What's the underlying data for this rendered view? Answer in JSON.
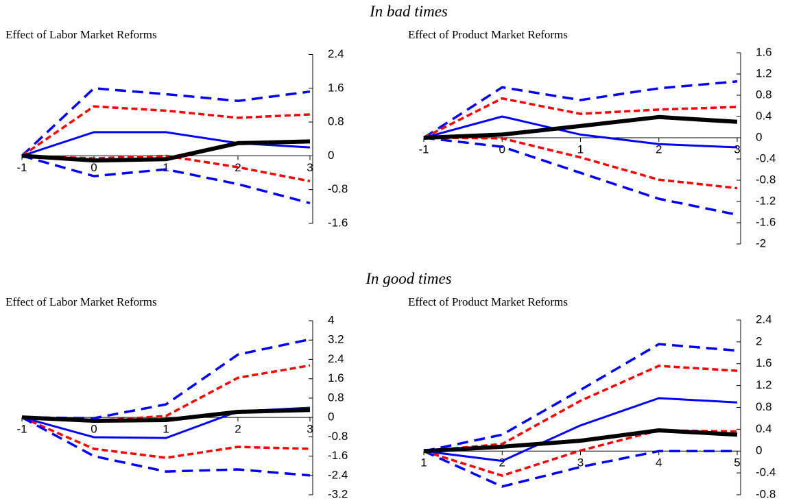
{
  "headings": [
    "In bad times",
    "In good times"
  ],
  "chart_data": [
    {
      "type": "line",
      "title": "Effect of Labor Market Reforms",
      "x": [
        -1,
        0,
        1,
        2,
        3
      ],
      "xlim": [
        -1,
        3
      ],
      "ylim": [
        -1.6,
        2.4
      ],
      "yticks": [
        2.4,
        1.6,
        0.8,
        0,
        -0.8,
        -1.6
      ],
      "series": [
        {
          "color": "#0000ff",
          "dash": "long",
          "line_width": 3.5,
          "values": [
            0,
            1.6,
            1.46,
            1.3,
            1.52
          ]
        },
        {
          "color": "#ff0000",
          "dash": "short",
          "line_width": 3.5,
          "values": [
            0,
            1.17,
            1.07,
            0.9,
            0.98
          ]
        },
        {
          "color": "#0000ff",
          "dash": "solid",
          "line_width": 3,
          "values": [
            0,
            0.56,
            0.56,
            0.3,
            0.2
          ]
        },
        {
          "color": "#ff0000",
          "dash": "short",
          "line_width": 3.5,
          "values": [
            0,
            -0.06,
            0,
            -0.27,
            -0.6
          ]
        },
        {
          "color": "#0000ff",
          "dash": "long",
          "line_width": 3.5,
          "values": [
            0,
            -0.48,
            -0.32,
            -0.67,
            -1.12
          ]
        },
        {
          "color": "#000000",
          "dash": "solid",
          "line_width": 6,
          "values": [
            0,
            -0.11,
            -0.08,
            0.3,
            0.34
          ]
        }
      ]
    },
    {
      "type": "line",
      "title": "Effect of Product Market Reforms",
      "x": [
        -1,
        0,
        1,
        2,
        3
      ],
      "xlim": [
        -1,
        3
      ],
      "ylim": [
        -2,
        1.6
      ],
      "yticks": [
        1.6,
        1.2,
        0.8,
        0.4,
        0,
        -0.4,
        -0.8,
        -1.2,
        -1.6,
        -2
      ],
      "series": [
        {
          "color": "#0000ff",
          "dash": "long",
          "line_width": 3.5,
          "values": [
            0,
            0.95,
            0.71,
            0.93,
            1.06
          ]
        },
        {
          "color": "#ff0000",
          "dash": "short",
          "line_width": 3.5,
          "values": [
            0,
            0.74,
            0.45,
            0.53,
            0.58
          ]
        },
        {
          "color": "#0000ff",
          "dash": "solid",
          "line_width": 3,
          "values": [
            0,
            0.4,
            0.06,
            -0.12,
            -0.18
          ]
        },
        {
          "color": "#ff0000",
          "dash": "short",
          "line_width": 3.5,
          "values": [
            0,
            -0.01,
            -0.37,
            -0.79,
            -0.95
          ]
        },
        {
          "color": "#0000ff",
          "dash": "long",
          "line_width": 3.5,
          "values": [
            0,
            -0.17,
            -0.66,
            -1.15,
            -1.45
          ]
        },
        {
          "color": "#000000",
          "dash": "solid",
          "line_width": 6,
          "values": [
            0,
            0.06,
            0.22,
            0.39,
            0.3
          ]
        }
      ]
    },
    {
      "type": "line",
      "title": "Effect of Labor Market Reforms",
      "x": [
        -1,
        0,
        1,
        2,
        3
      ],
      "xlim": [
        -1,
        3
      ],
      "ylim": [
        -3.2,
        4
      ],
      "yticks": [
        4,
        3.2,
        2.4,
        1.6,
        0.8,
        0,
        -0.8,
        -1.6,
        -2.4,
        -3.2
      ],
      "series": [
        {
          "color": "#0000ff",
          "dash": "long",
          "line_width": 3.5,
          "values": [
            0,
            -0.03,
            0.54,
            2.6,
            3.23
          ]
        },
        {
          "color": "#ff0000",
          "dash": "short",
          "line_width": 3.5,
          "values": [
            0,
            -0.14,
            0.06,
            1.64,
            2.15
          ]
        },
        {
          "color": "#0000ff",
          "dash": "solid",
          "line_width": 3,
          "values": [
            0,
            -0.82,
            -0.85,
            0.25,
            0.4
          ]
        },
        {
          "color": "#ff0000",
          "dash": "short",
          "line_width": 3.5,
          "values": [
            0,
            -1.3,
            -1.67,
            -1.22,
            -1.3
          ]
        },
        {
          "color": "#0000ff",
          "dash": "long",
          "line_width": 3.5,
          "values": [
            0,
            -1.6,
            -2.24,
            -2.15,
            -2.4
          ]
        },
        {
          "color": "#000000",
          "dash": "solid",
          "line_width": 6,
          "values": [
            0,
            -0.14,
            -0.11,
            0.23,
            0.31
          ]
        }
      ]
    },
    {
      "type": "line",
      "title": "Effect of Product Market Reforms",
      "x": [
        1,
        2,
        3,
        4,
        5
      ],
      "xlim": [
        1,
        5
      ],
      "ylim": [
        -0.8,
        2.4
      ],
      "yticks": [
        2.4,
        2,
        1.6,
        1.2,
        0.8,
        0.4,
        0,
        -0.4,
        -0.8
      ],
      "series": [
        {
          "color": "#0000ff",
          "dash": "long",
          "line_width": 3.5,
          "values": [
            0,
            0.3,
            1.12,
            1.96,
            1.84
          ]
        },
        {
          "color": "#ff0000",
          "dash": "short",
          "line_width": 3.5,
          "values": [
            0,
            0.13,
            0.92,
            1.56,
            1.47
          ]
        },
        {
          "color": "#0000ff",
          "dash": "solid",
          "line_width": 3,
          "values": [
            0,
            -0.18,
            0.47,
            0.97,
            0.89
          ]
        },
        {
          "color": "#ff0000",
          "dash": "short",
          "line_width": 3.5,
          "values": [
            0,
            -0.45,
            0.01,
            0.38,
            0.36
          ]
        },
        {
          "color": "#0000ff",
          "dash": "long",
          "line_width": 3.5,
          "values": [
            0,
            -0.65,
            -0.29,
            0,
            0
          ]
        },
        {
          "color": "#000000",
          "dash": "solid",
          "line_width": 6,
          "values": [
            0,
            0.08,
            0.19,
            0.38,
            0.3
          ]
        }
      ]
    }
  ]
}
